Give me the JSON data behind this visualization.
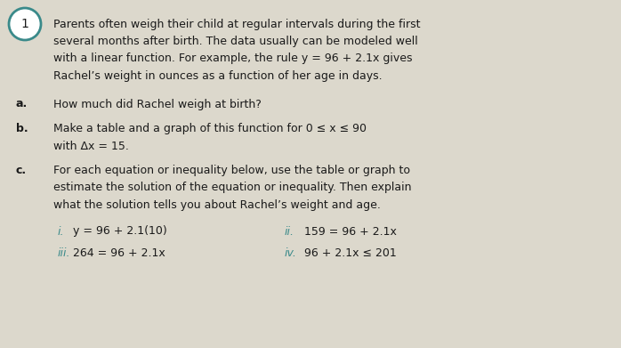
{
  "bg_color": "#dcd8cc",
  "text_color": "#1a1a1a",
  "teal_color": "#3a8a8a",
  "circle_number": "1",
  "para_line1": "Parents often weigh their child at regular intervals during the first",
  "para_line2": "several months after birth. The data usually can be modeled well",
  "para_line3": "with a linear function. For example, the rule y = 96 + 2.1x gives",
  "para_line4": "Rachel’s weight in ounces as a function of her age in days.",
  "part_a_label": "a.",
  "part_a_text": "How much did Rachel weigh at birth?",
  "part_b_label": "b.",
  "part_b_line1": "Make a table and a graph of this function for 0 ≤ x ≤ 90",
  "part_b_line2": "with Δx = 15.",
  "part_c_label": "c.",
  "part_c_line1": "For each equation or inequality below, use the table or graph to",
  "part_c_line2": "estimate the solution of the equation or inequality. Then explain",
  "part_c_line3": "what the solution tells you about Rachel’s weight and age.",
  "sub_i_label": "i.",
  "sub_i_text": "y = 96 + 2.1(10)",
  "sub_ii_label": "ii.",
  "sub_ii_text": "159 = 96 + 2.1x",
  "sub_iii_label": "iii.",
  "sub_iii_text": "264 = 96 + 2.1x",
  "sub_iv_label": "iv.",
  "sub_iv_text": "96 + 2.1x ≤ 201",
  "figwidth": 6.98,
  "figheight": 3.91,
  "dpi": 100
}
